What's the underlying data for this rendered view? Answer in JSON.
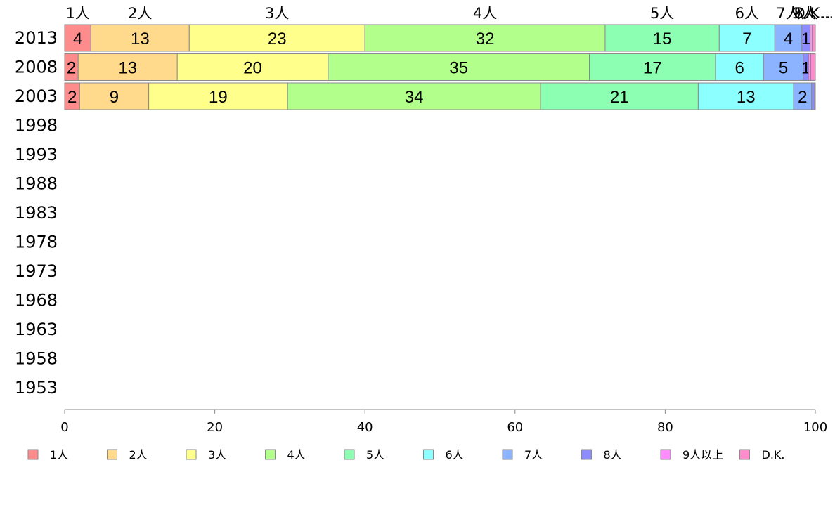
{
  "chart_data": {
    "type": "bar",
    "orientation": "horizontal",
    "stacked": true,
    "title": "",
    "xlabel": "",
    "ylabel": "",
    "xlim": [
      0,
      100
    ],
    "x_ticks": [
      0,
      20,
      40,
      60,
      80,
      100
    ],
    "grid": false,
    "legend_placement": "bottom",
    "categories": [
      "2013",
      "2008",
      "2003",
      "1998",
      "1993",
      "1988",
      "1983",
      "1978",
      "1973",
      "1968",
      "1963",
      "1958",
      "1953"
    ],
    "top_labels": [
      "1人",
      "2人",
      "3人",
      "4人",
      "5人",
      "6人",
      "7人",
      "8人",
      "9人",
      "D.K."
    ],
    "top_labels_display": [
      "1人",
      "2人",
      "3人",
      "4人",
      "5人",
      "6人",
      "7人",
      "8人",
      "9人…",
      "D.K..."
    ],
    "series": [
      {
        "name": "1人",
        "color": "#ff8c8c",
        "values": [
          3.5,
          1.8,
          2.0,
          null,
          null,
          null,
          null,
          null,
          null,
          null,
          null,
          null,
          null
        ],
        "labels": [
          "4",
          "2",
          "2"
        ]
      },
      {
        "name": "2人",
        "color": "#ffd98c",
        "values": [
          13.1,
          13.2,
          9.2,
          null,
          null,
          null,
          null,
          null,
          null,
          null,
          null,
          null,
          null
        ],
        "labels": [
          "13",
          "13",
          "9"
        ]
      },
      {
        "name": "3人",
        "color": "#ffff8c",
        "values": [
          23.4,
          20.1,
          18.5,
          null,
          null,
          null,
          null,
          null,
          null,
          null,
          null,
          null,
          null
        ],
        "labels": [
          "23",
          "20",
          "19"
        ]
      },
      {
        "name": "4人",
        "color": "#b3ff8c",
        "values": [
          32.0,
          34.8,
          33.7,
          null,
          null,
          null,
          null,
          null,
          null,
          null,
          null,
          null,
          null
        ],
        "labels": [
          "32",
          "35",
          "34"
        ]
      },
      {
        "name": "5人",
        "color": "#8cffb3",
        "values": [
          15.2,
          16.8,
          21.0,
          null,
          null,
          null,
          null,
          null,
          null,
          null,
          null,
          null,
          null
        ],
        "labels": [
          "15",
          "17",
          "21"
        ]
      },
      {
        "name": "6人",
        "color": "#8cffff",
        "values": [
          7.4,
          6.4,
          12.7,
          null,
          null,
          null,
          null,
          null,
          null,
          null,
          null,
          null,
          null
        ],
        "labels": [
          "7",
          "6",
          "13"
        ]
      },
      {
        "name": "7人",
        "color": "#8cb3ff",
        "values": [
          3.6,
          5.3,
          2.4,
          null,
          null,
          null,
          null,
          null,
          null,
          null,
          null,
          null,
          null
        ],
        "labels": [
          "4",
          "5",
          "2"
        ]
      },
      {
        "name": "8人",
        "color": "#8c8cff",
        "values": [
          1.1,
          0.7,
          0.4,
          null,
          null,
          null,
          null,
          null,
          null,
          null,
          null,
          null,
          null
        ],
        "labels": [
          "1",
          "1",
          ""
        ]
      },
      {
        "name": "9人以上",
        "color": "#ff8cff",
        "values": [
          0.3,
          0.3,
          0.1,
          null,
          null,
          null,
          null,
          null,
          null,
          null,
          null,
          null,
          null
        ],
        "labels": [
          "",
          "",
          ""
        ]
      },
      {
        "name": "D.K.",
        "color": "#ff8ccc",
        "values": [
          0.4,
          0.6,
          0.0,
          null,
          null,
          null,
          null,
          null,
          null,
          null,
          null,
          null,
          null
        ],
        "labels": [
          "",
          "",
          ""
        ]
      }
    ]
  }
}
